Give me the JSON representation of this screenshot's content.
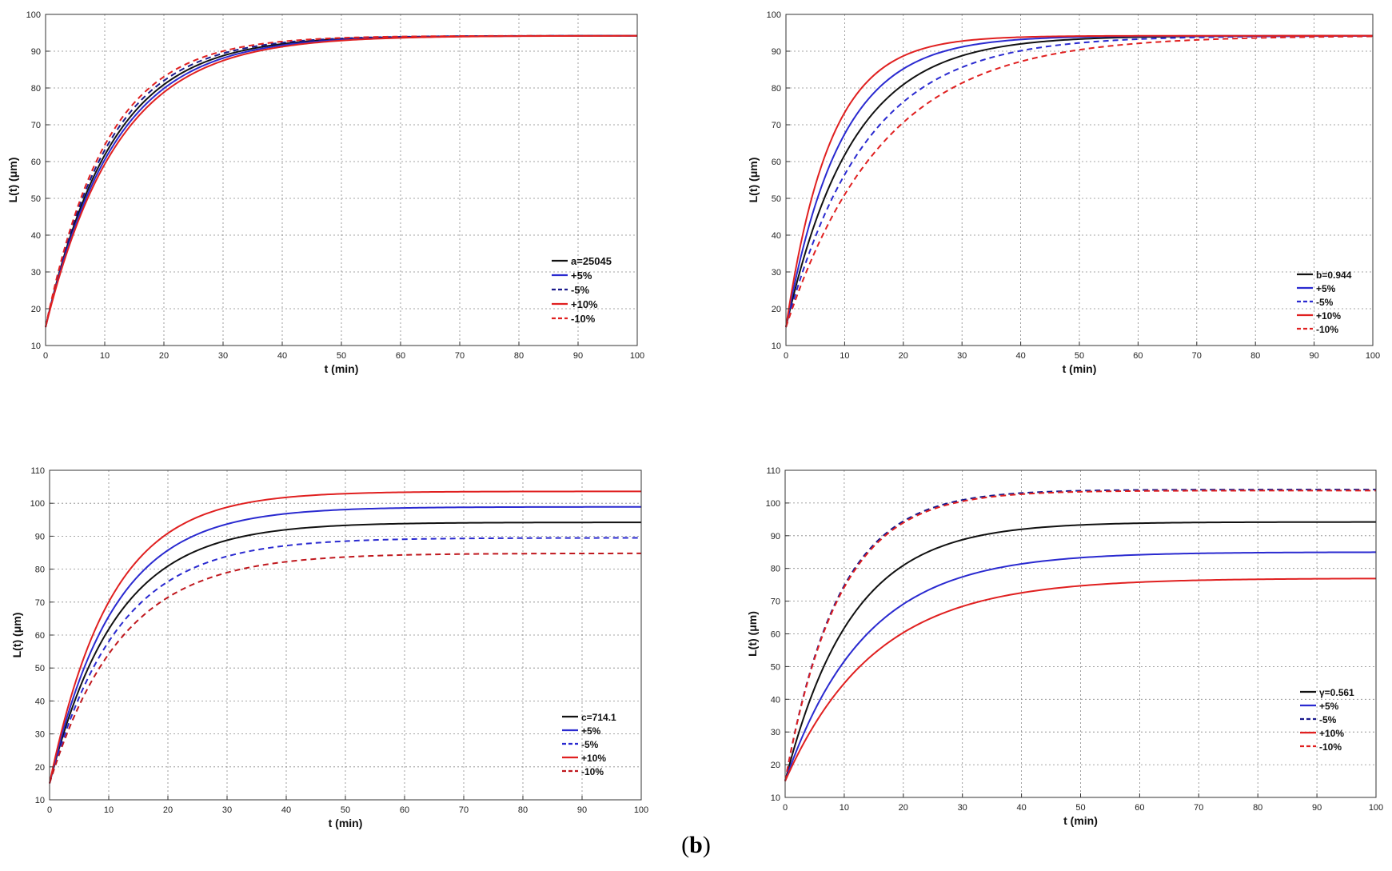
{
  "caption": {
    "open": "(",
    "letter": "b",
    "close": ")"
  },
  "colors": {
    "black": "#111111",
    "blue": "#2a2ad0",
    "navy": "#1a1a8c",
    "red": "#e02020",
    "darkred": "#c0181e",
    "grid": "#888888"
  },
  "chart_data": [
    {
      "type": "line",
      "title": "",
      "xlabel": "t (min)",
      "ylabel": "L(t) (μm)",
      "xlim": [
        0,
        100
      ],
      "ylim": [
        10,
        100
      ],
      "xticks": [
        0,
        10,
        20,
        30,
        40,
        50,
        60,
        70,
        80,
        90,
        100
      ],
      "yticks": [
        10,
        20,
        30,
        40,
        50,
        60,
        70,
        80,
        90,
        100
      ],
      "grid": true,
      "legend_position": "bottom-right",
      "series": [
        {
          "name": "a=25045",
          "color": "#111111",
          "dash": false,
          "L0": 15,
          "Linf": 94.2,
          "tau": 11.2
        },
        {
          "name": "+5%",
          "color": "#2a2ad0",
          "dash": false,
          "L0": 15,
          "Linf": 94.2,
          "tau": 11.7
        },
        {
          "name": "-5%",
          "color": "#1a1a8c",
          "dash": true,
          "L0": 15,
          "Linf": 94.2,
          "tau": 10.7
        },
        {
          "name": "+10%",
          "color": "#e02020",
          "dash": false,
          "L0": 15,
          "Linf": 94.2,
          "tau": 12.2
        },
        {
          "name": "-10%",
          "color": "#e02020",
          "dash": true,
          "L0": 15,
          "Linf": 94.2,
          "tau": 10.2
        }
      ]
    },
    {
      "type": "line",
      "title": "",
      "xlabel": "t (min)",
      "ylabel": "L(t) (μm)",
      "xlim": [
        0,
        100
      ],
      "ylim": [
        10,
        100
      ],
      "xticks": [
        0,
        10,
        20,
        30,
        40,
        50,
        60,
        70,
        80,
        90,
        100
      ],
      "yticks": [
        10,
        20,
        30,
        40,
        50,
        60,
        70,
        80,
        90,
        100
      ],
      "grid": true,
      "legend_position": "bottom-right",
      "series": [
        {
          "name": "b=0.944",
          "color": "#111111",
          "dash": false,
          "L0": 15,
          "Linf": 94.2,
          "tau": 11.2
        },
        {
          "name": "+5%",
          "color": "#2a2ad0",
          "dash": false,
          "L0": 15,
          "Linf": 94.2,
          "tau": 9.2
        },
        {
          "name": "-5%",
          "color": "#2a2ad0",
          "dash": true,
          "L0": 15,
          "Linf": 94.2,
          "tau": 13.5
        },
        {
          "name": "+10%",
          "color": "#e02020",
          "dash": false,
          "L0": 15,
          "Linf": 94.2,
          "tau": 7.5
        },
        {
          "name": "-10%",
          "color": "#e02020",
          "dash": true,
          "L0": 15,
          "Linf": 94.2,
          "tau": 16.5
        }
      ]
    },
    {
      "type": "line",
      "title": "",
      "xlabel": "t (min)",
      "ylabel": "L(t) (μm)",
      "xlim": [
        0,
        100
      ],
      "ylim": [
        10,
        110
      ],
      "xticks": [
        0,
        10,
        20,
        30,
        40,
        50,
        60,
        70,
        80,
        90,
        100
      ],
      "yticks": [
        10,
        20,
        30,
        40,
        50,
        60,
        70,
        80,
        90,
        100,
        110
      ],
      "grid": true,
      "legend_position": "bottom-right",
      "series": [
        {
          "name": "c=714.1",
          "color": "#111111",
          "dash": false,
          "L0": 15,
          "Linf": 94.2,
          "tau": 11.2
        },
        {
          "name": "+5%",
          "color": "#2a2ad0",
          "dash": false,
          "L0": 15,
          "Linf": 98.9,
          "tau": 10.8
        },
        {
          "name": "-5%",
          "color": "#2a2ad0",
          "dash": true,
          "L0": 15,
          "Linf": 89.5,
          "tau": 11.6
        },
        {
          "name": "+10%",
          "color": "#e02020",
          "dash": false,
          "L0": 15,
          "Linf": 103.6,
          "tau": 10.3
        },
        {
          "name": "-10%",
          "color": "#c0181e",
          "dash": true,
          "L0": 15,
          "Linf": 84.8,
          "tau": 12.1
        }
      ]
    },
    {
      "type": "line",
      "title": "",
      "xlabel": "t (min)",
      "ylabel": "L(t) (μm)",
      "xlim": [
        0,
        100
      ],
      "ylim": [
        10,
        110
      ],
      "xticks": [
        0,
        10,
        20,
        30,
        40,
        50,
        60,
        70,
        80,
        90,
        100
      ],
      "yticks": [
        10,
        20,
        30,
        40,
        50,
        60,
        70,
        80,
        90,
        100,
        110
      ],
      "grid": true,
      "legend_position": "bottom-right",
      "series": [
        {
          "name": "γ=0.561",
          "color": "#111111",
          "dash": false,
          "L0": 15,
          "Linf": 94.2,
          "tau": 11.2
        },
        {
          "name": "+5%",
          "color": "#2a2ad0",
          "dash": false,
          "L0": 15,
          "Linf": 85.0,
          "tau": 13.5
        },
        {
          "name": "-5%",
          "color": "#1a1a8c",
          "dash": true,
          "L0": 15,
          "Linf": 104.1,
          "tau": 9.0
        },
        {
          "name": "+10%",
          "color": "#e02020",
          "dash": false,
          "L0": 15,
          "Linf": 77.0,
          "tau": 15.2
        },
        {
          "name": "-10%",
          "color": "#e02020",
          "dash": true,
          "L0": 15,
          "Linf": 103.8,
          "tau": 9.1
        }
      ]
    }
  ]
}
